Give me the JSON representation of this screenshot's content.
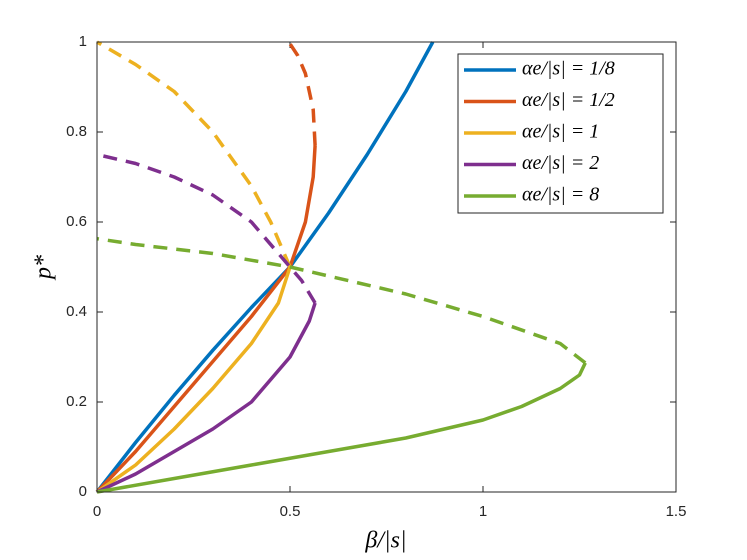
{
  "chart_data": {
    "type": "line",
    "xlabel": "β/|s|",
    "ylabel": "p*",
    "xlim": [
      0,
      1.5
    ],
    "ylim": [
      0,
      1
    ],
    "xticks": [
      0,
      0.5,
      1,
      1.5
    ],
    "yticks": [
      0,
      0.2,
      0.4,
      0.6,
      0.8,
      1
    ],
    "legend": "top-right",
    "series": [
      {
        "name": "αe/|s| = 1/8",
        "color": "#0072bd",
        "x": [
          0,
          0.1,
          0.2,
          0.3,
          0.4,
          0.5,
          0.6,
          0.7,
          0.8,
          0.87
        ],
        "values": [
          0,
          0.11,
          0.215,
          0.315,
          0.41,
          0.5,
          0.62,
          0.75,
          0.89,
          1
        ],
        "dashed": {
          "x": [],
          "values": []
        }
      },
      {
        "name": "αe/|s| = 1/2",
        "color": "#d95319",
        "x": [
          0,
          0.1,
          0.2,
          0.3,
          0.4,
          0.5,
          0.54,
          0.56,
          0.565
        ],
        "values": [
          0,
          0.09,
          0.19,
          0.29,
          0.39,
          0.5,
          0.6,
          0.7,
          0.77
        ],
        "dashed": {
          "x": [
            0.565,
            0.56,
            0.54,
            0.52,
            0.497
          ],
          "values": [
            0.77,
            0.85,
            0.93,
            0.97,
            1
          ]
        }
      },
      {
        "name": "αe/|s| = 1",
        "color": "#edb120",
        "x": [
          0,
          0.1,
          0.2,
          0.3,
          0.4,
          0.47,
          0.5
        ],
        "values": [
          0,
          0.06,
          0.14,
          0.23,
          0.33,
          0.42,
          0.5
        ],
        "dashed": {
          "x": [
            0.5,
            0.45,
            0.4,
            0.3,
            0.2,
            0.1,
            0
          ],
          "values": [
            0.5,
            0.6,
            0.68,
            0.8,
            0.89,
            0.95,
            1
          ]
        }
      },
      {
        "name": "αe/|s| = 2",
        "color": "#7e2f8e",
        "x": [
          0,
          0.1,
          0.2,
          0.3,
          0.4,
          0.5,
          0.55,
          0.565
        ],
        "values": [
          0,
          0.04,
          0.09,
          0.14,
          0.2,
          0.3,
          0.38,
          0.42
        ],
        "dashed": {
          "x": [
            0.565,
            0.53,
            0.5,
            0.4,
            0.3,
            0.2,
            0.1,
            0
          ],
          "values": [
            0.42,
            0.47,
            0.5,
            0.6,
            0.66,
            0.7,
            0.73,
            0.75
          ]
        }
      },
      {
        "name": "αe/|s| = 8",
        "color": "#77ac30",
        "x": [
          0,
          0.2,
          0.4,
          0.6,
          0.8,
          1,
          1.1,
          1.2,
          1.25,
          1.265
        ],
        "values": [
          0,
          0.03,
          0.06,
          0.09,
          0.12,
          0.16,
          0.19,
          0.23,
          0.26,
          0.287
        ],
        "dashed": {
          "x": [
            1.265,
            1.2,
            1,
            0.8,
            0.6,
            0.5,
            0.3,
            0.1,
            0
          ],
          "values": [
            0.287,
            0.33,
            0.39,
            0.44,
            0.48,
            0.5,
            0.53,
            0.55,
            0.563
          ]
        }
      }
    ]
  }
}
